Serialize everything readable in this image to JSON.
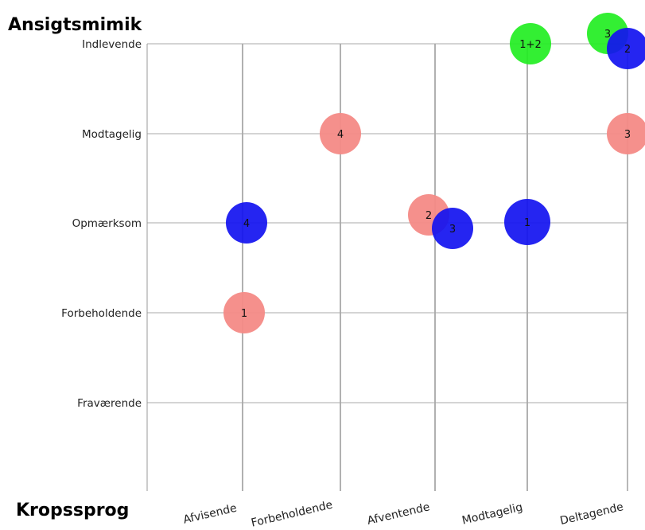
{
  "chart_data": {
    "type": "scatter",
    "title": "Ansigtsmimik",
    "xlabel": "Kropssprog",
    "ylabel": "Ansigtsmimik",
    "x_categories": [
      "Afvisende",
      "Forbeholdende",
      "Afventende",
      "Modtagelig",
      "Deltagende"
    ],
    "y_categories": [
      "Indlevende",
      "Modtagelig",
      "Opmærksom",
      "Forbeholdende",
      "Fraværende"
    ],
    "colors": {
      "salmon": "#f48a86",
      "blue": "#1212f0",
      "green": "#22ee22"
    },
    "points": [
      {
        "label": "1+2",
        "x": "Modtagelig",
        "y": "Indlevende",
        "color": "green"
      },
      {
        "label": "3",
        "x": "Deltagende",
        "y": "Indlevende",
        "color": "green"
      },
      {
        "label": "2",
        "x": "Deltagende",
        "y": "Indlevende",
        "color": "blue"
      },
      {
        "label": "4",
        "x": "Forbeholdende",
        "y": "Modtagelig",
        "color": "salmon"
      },
      {
        "label": "3",
        "x": "Deltagende",
        "y": "Modtagelig",
        "color": "salmon"
      },
      {
        "label": "4",
        "x": "Afvisende",
        "y": "Opmærksom",
        "color": "blue"
      },
      {
        "label": "2",
        "x": "Afventende",
        "y": "Opmærksom",
        "color": "salmon"
      },
      {
        "label": "3",
        "x": "Afventende",
        "y": "Opmærksom",
        "color": "blue"
      },
      {
        "label": "1",
        "x": "Modtagelig",
        "y": "Opmærksom",
        "color": "blue"
      },
      {
        "label": "1",
        "x": "Afvisende",
        "y": "Forbeholdende",
        "color": "salmon"
      }
    ]
  }
}
